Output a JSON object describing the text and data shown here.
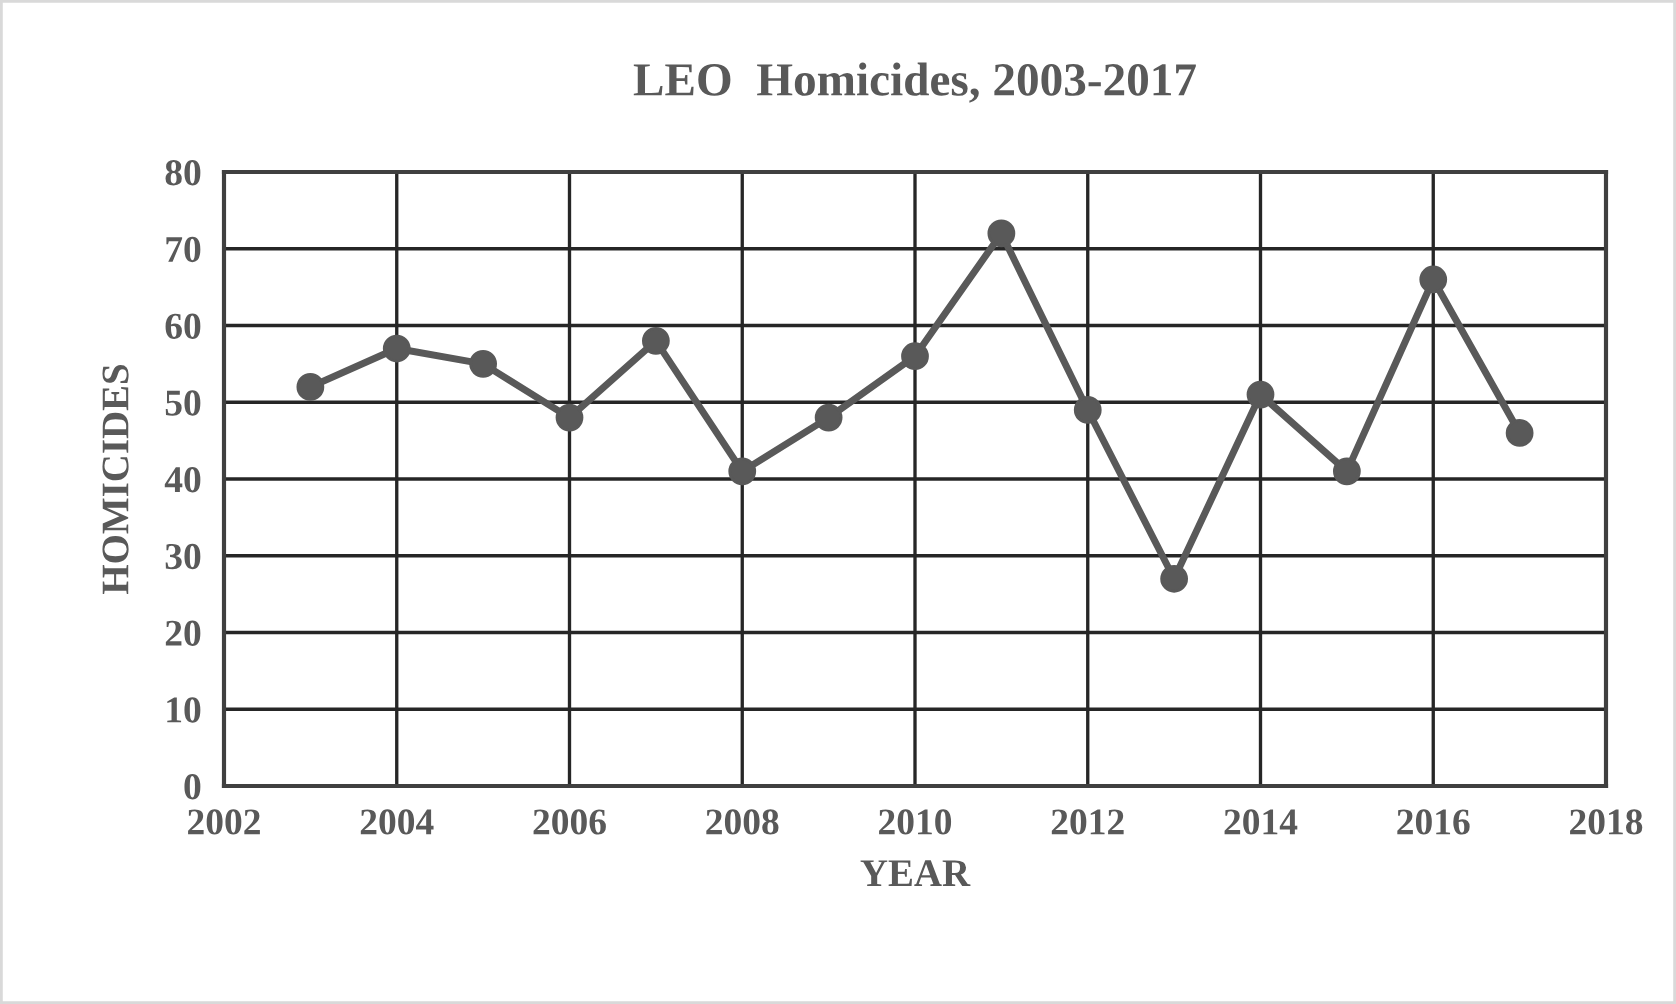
{
  "chart_data": {
    "type": "line",
    "title": "LEO  Homicides, 2003-2017",
    "xlabel": "YEAR",
    "ylabel": "HOMICIDES",
    "x": [
      2003,
      2004,
      2005,
      2006,
      2007,
      2008,
      2009,
      2010,
      2011,
      2012,
      2013,
      2014,
      2015,
      2016,
      2017
    ],
    "series": [
      {
        "color": "#595959",
        "values": [
          52,
          57,
          55,
          48,
          58,
          41,
          48,
          56,
          72,
          49,
          27,
          51,
          41,
          66,
          46
        ]
      }
    ],
    "xlim": [
      2002,
      2018
    ],
    "xticks": [
      2002,
      2004,
      2006,
      2008,
      2010,
      2012,
      2014,
      2016,
      2018
    ],
    "ylim": [
      0,
      80
    ],
    "yticks": [
      0,
      10,
      20,
      30,
      40,
      50,
      60,
      70,
      80
    ],
    "grid": true,
    "marker": "circle",
    "line_style": "solid"
  }
}
